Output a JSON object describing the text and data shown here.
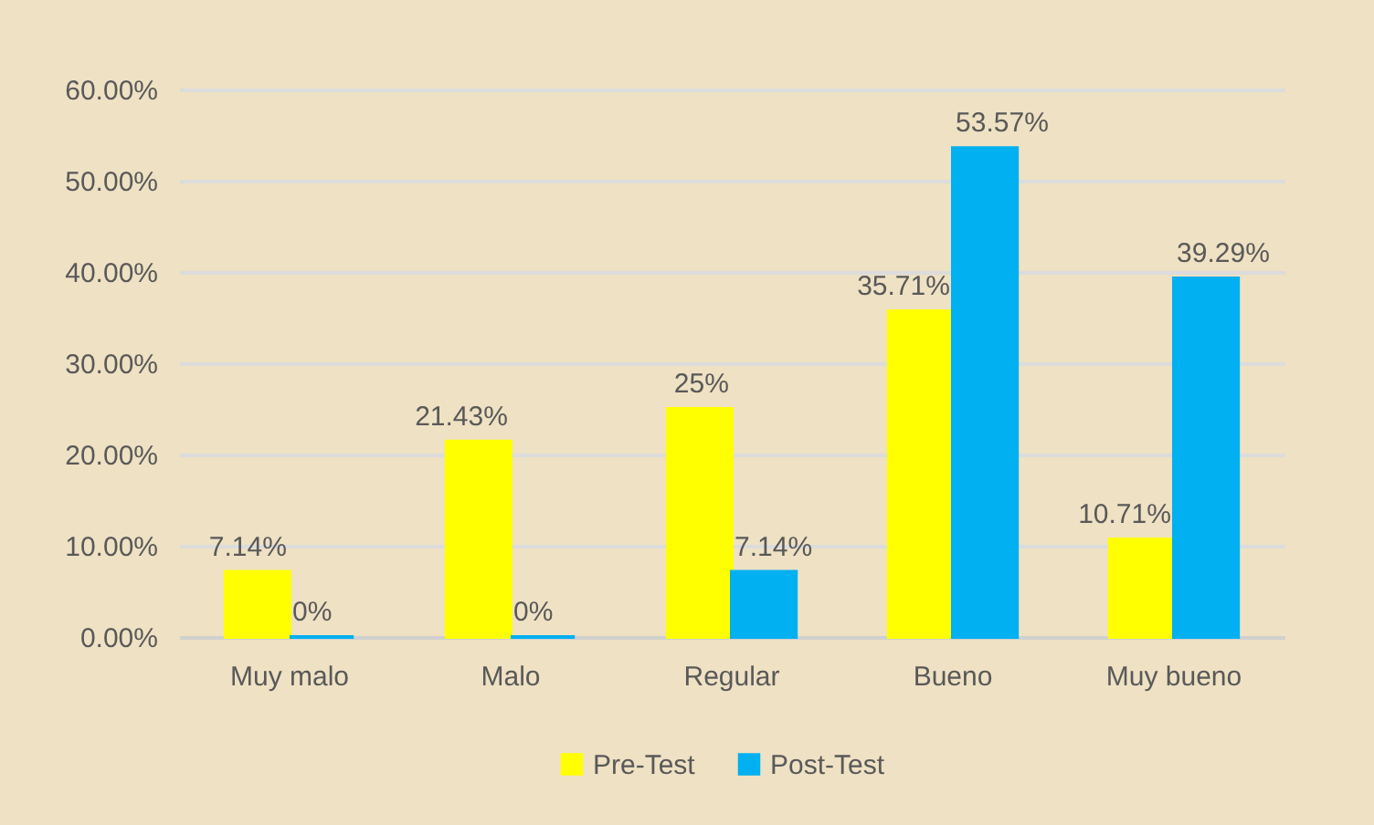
{
  "chart_data": {
    "type": "bar",
    "categories": [
      "Muy malo",
      "Malo",
      "Regular",
      "Bueno",
      "Muy bueno"
    ],
    "series": [
      {
        "name": "Pre-Test",
        "color": "#ffff00",
        "values": [
          7.14,
          21.43,
          25,
          35.71,
          10.71
        ],
        "value_labels": [
          "7.14%",
          "21.43%",
          "25%",
          "35.71%",
          "10.71%"
        ]
      },
      {
        "name": "Post-Test",
        "color": "#00b0f0",
        "values": [
          0,
          0,
          7.14,
          53.57,
          39.29
        ],
        "value_labels": [
          "0%",
          "0%",
          "7.14%",
          "53.57%",
          "39.29%"
        ]
      }
    ],
    "ylim": [
      0,
      60
    ],
    "yticks": [
      {
        "value": 0,
        "label": "0.00%"
      },
      {
        "value": 10,
        "label": "10.00%"
      },
      {
        "value": 20,
        "label": "20.00%"
      },
      {
        "value": 30,
        "label": "30.00%"
      },
      {
        "value": 40,
        "label": "40.00%"
      },
      {
        "value": 50,
        "label": "50.00%"
      },
      {
        "value": 60,
        "label": "60.00%"
      }
    ],
    "grid": "y",
    "legend": "bottom"
  }
}
